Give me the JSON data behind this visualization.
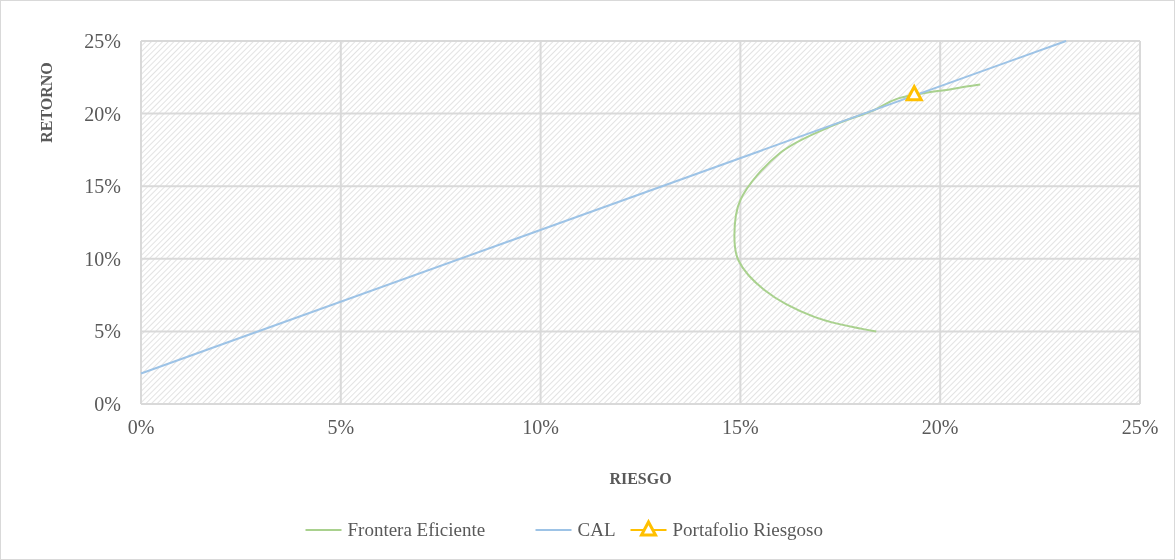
{
  "chart_data": {
    "type": "line",
    "xlabel": "RIESGO",
    "ylabel": "RETORNO",
    "xlim": [
      0,
      25
    ],
    "ylim": [
      0,
      25
    ],
    "xticks": [
      {
        "value": 0,
        "label": "0%"
      },
      {
        "value": 5,
        "label": "5%"
      },
      {
        "value": 10,
        "label": "10%"
      },
      {
        "value": 15,
        "label": "15%"
      },
      {
        "value": 20,
        "label": "20%"
      },
      {
        "value": 25,
        "label": "25%"
      }
    ],
    "yticks": [
      {
        "value": 0,
        "label": "0%"
      },
      {
        "value": 5,
        "label": "5%"
      },
      {
        "value": 10,
        "label": "10%"
      },
      {
        "value": 15,
        "label": "15%"
      },
      {
        "value": 20,
        "label": "20%"
      },
      {
        "value": 25,
        "label": "25%"
      }
    ],
    "grid": true,
    "legend": "bottom",
    "series": [
      {
        "name": "Frontera Eficiente",
        "color": "#a9d18e",
        "marker": "none",
        "x": [
          18.4,
          16.85,
          15.6,
          14.95,
          14.85,
          15.0,
          16.0,
          17.25,
          18.35,
          18.9,
          20.3,
          21.0
        ],
        "values": [
          5.0,
          6.0,
          7.85,
          9.9,
          11.6,
          14.05,
          17.3,
          19.1,
          20.25,
          21.0,
          21.7,
          22.0
        ]
      },
      {
        "name": "CAL",
        "color": "#9dc3e6",
        "marker": "none",
        "x": [
          0,
          23.15
        ],
        "values": [
          2.1,
          25
        ]
      },
      {
        "name": "Portafolio Riesgoso",
        "type": "scatter",
        "color": "#ffc000",
        "marker": "triangle",
        "x": [
          19.35
        ],
        "values": [
          21.3
        ]
      }
    ]
  }
}
